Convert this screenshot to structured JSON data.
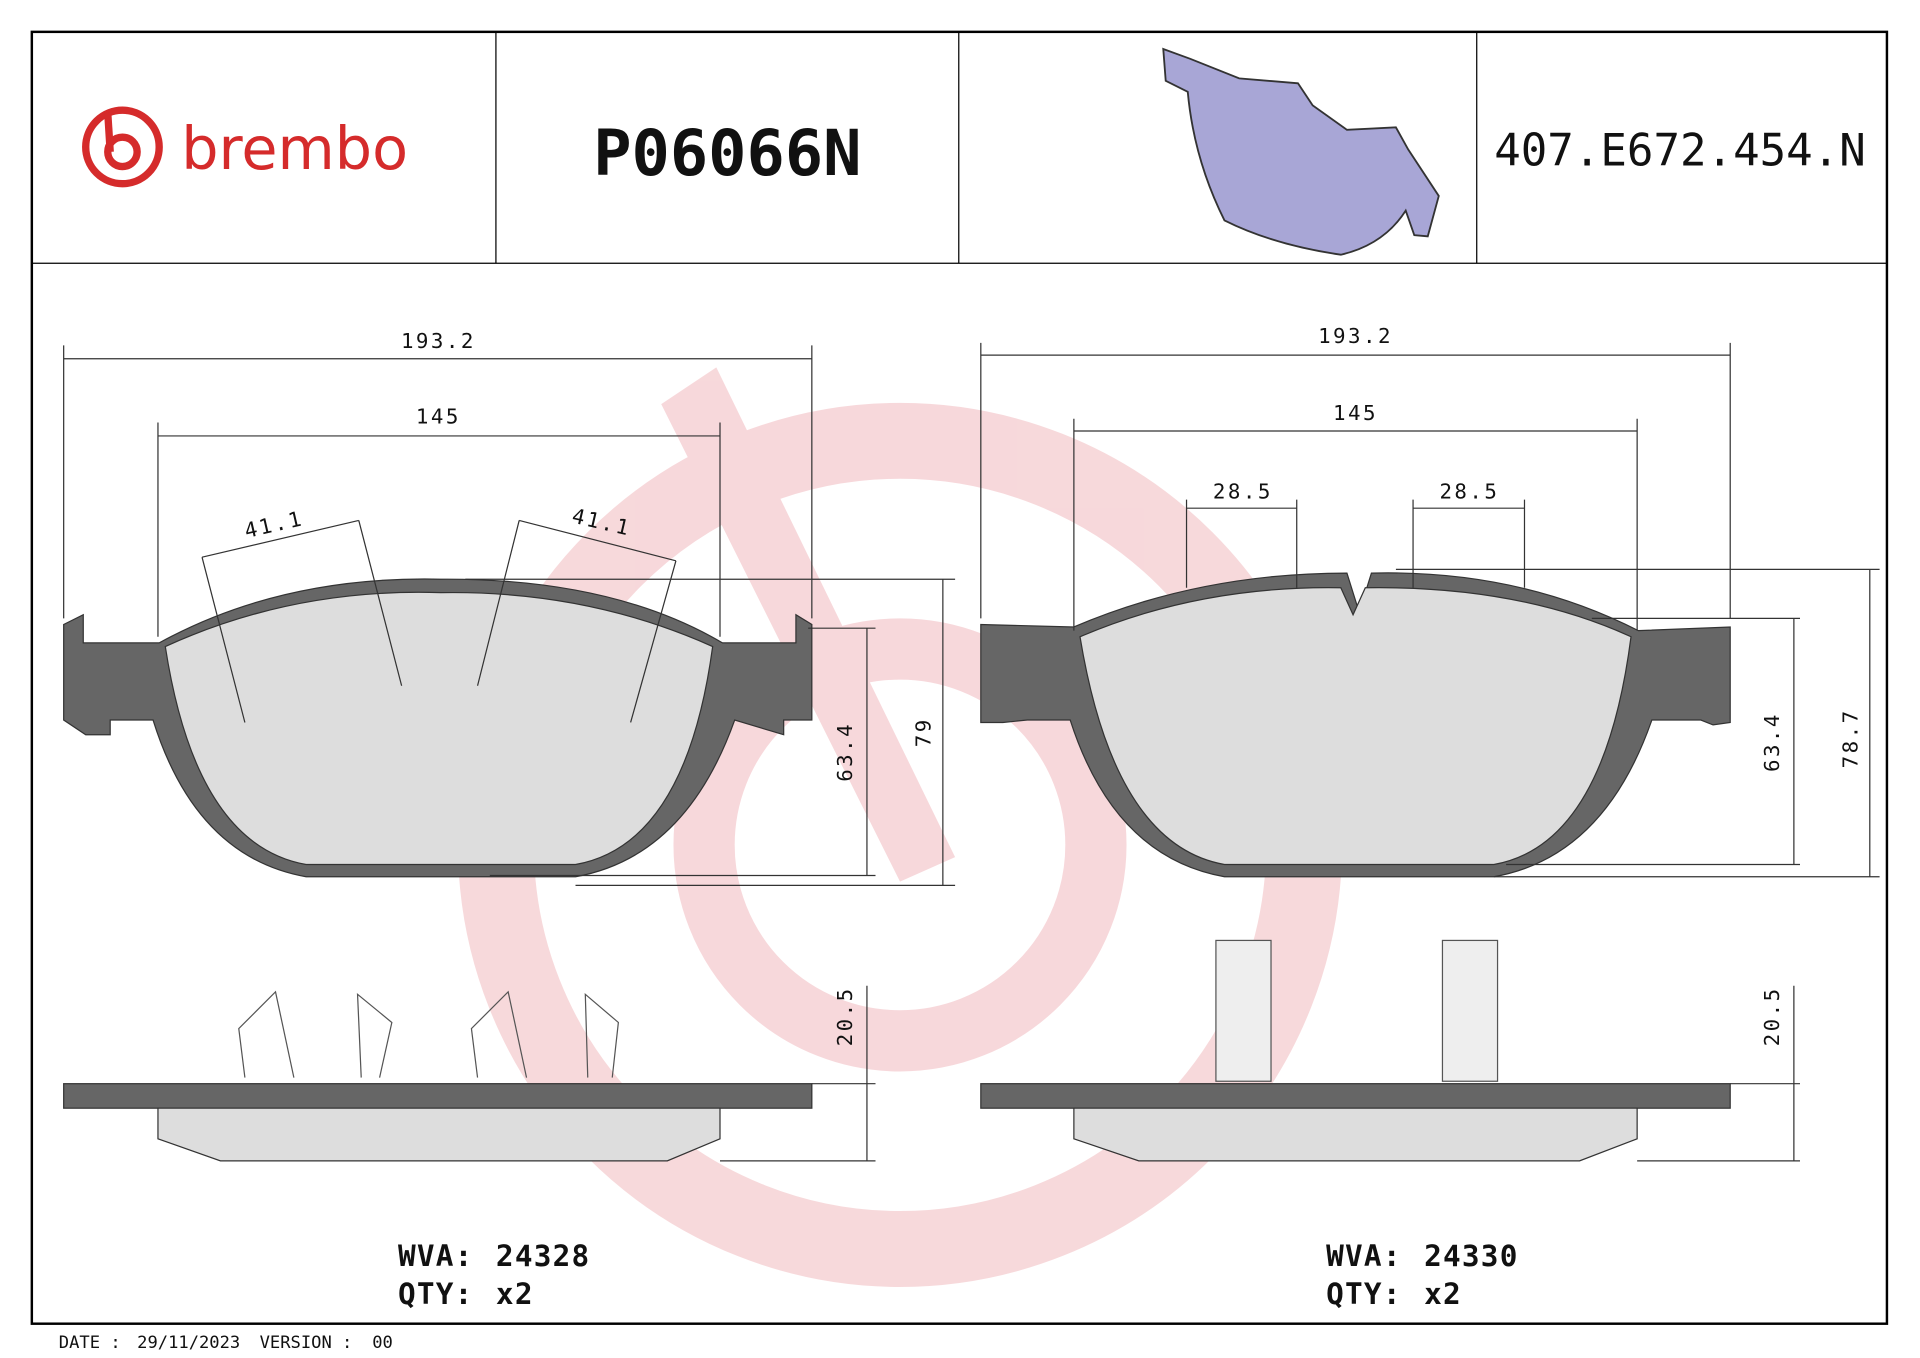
{
  "header": {
    "logo": "brembo",
    "part_number": "P06066N",
    "code": "407.E672.454.N"
  },
  "left_pad": {
    "dimensions": {
      "width_total": "193.2",
      "width_inner": "145",
      "angle_left": "41.1",
      "angle_right": "41.1",
      "height_inner": "63.4",
      "height_total": "79",
      "thickness": "20.5"
    },
    "wva_label": "WVA:",
    "wva": "24328",
    "qty_label": "QTY:",
    "qty": "x2"
  },
  "right_pad": {
    "dimensions": {
      "width_total": "193.2",
      "width_inner": "145",
      "clip_left": "28.5",
      "clip_right": "28.5",
      "height_inner": "63.4",
      "height_total": "78.7",
      "thickness": "20.5"
    },
    "wva_label": "WVA:",
    "wva": "24330",
    "qty_label": "QTY:",
    "qty": "x2"
  },
  "footer": {
    "date_label": "DATE :",
    "date": "29/11/2023",
    "version_label": "VERSION :",
    "version": "00"
  }
}
